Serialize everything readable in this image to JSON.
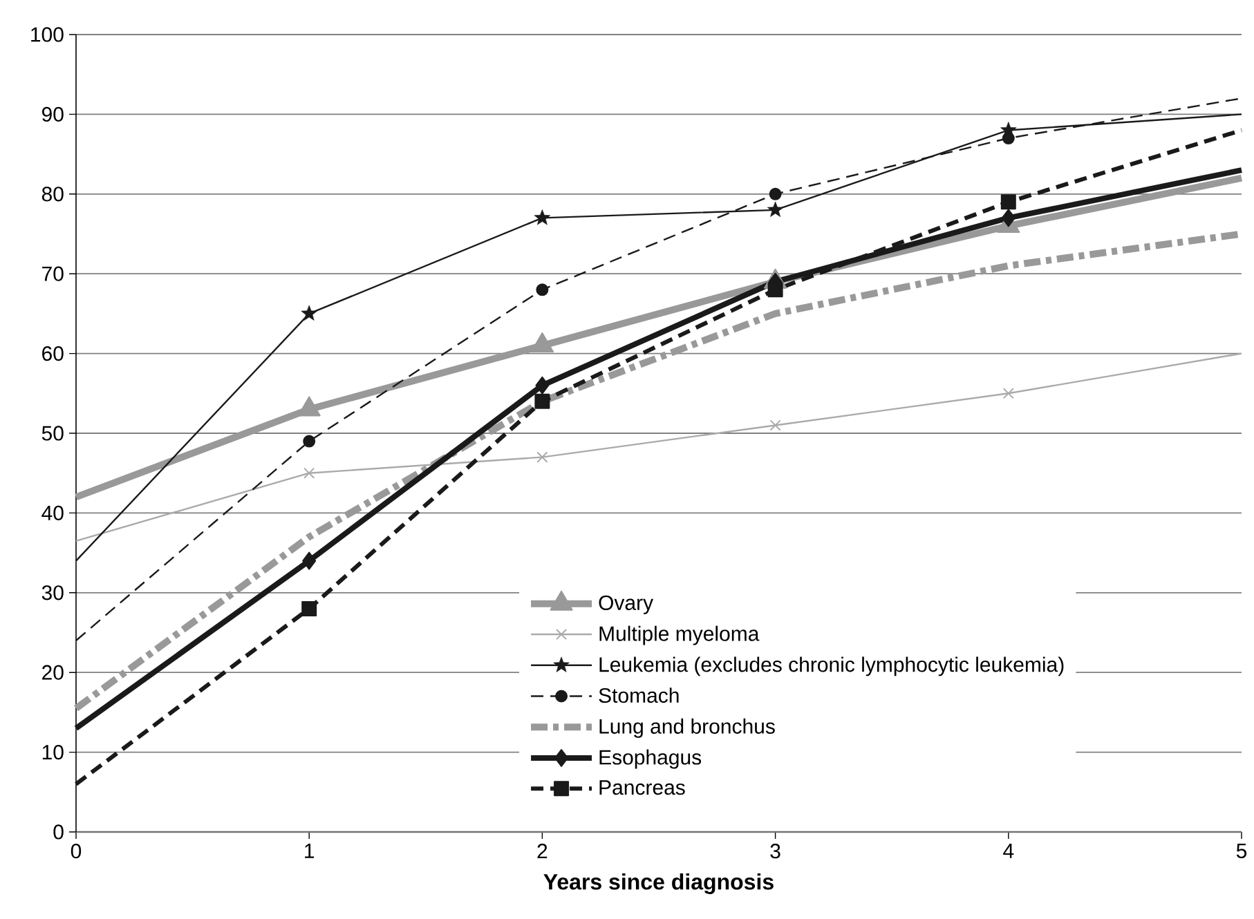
{
  "chart_data": {
    "type": "line",
    "xlabel": "Years since diagnosis",
    "x": [
      0,
      1,
      2,
      3,
      4,
      5
    ],
    "xlim": [
      0,
      5
    ],
    "xticks": [
      0,
      1,
      2,
      3,
      4,
      5
    ],
    "ylim": [
      0,
      100
    ],
    "yticks": [
      0,
      10,
      20,
      30,
      40,
      50,
      60,
      70,
      80,
      90,
      100
    ],
    "grid": "y",
    "legend": "bottom right",
    "series": [
      {
        "name": "Ovary",
        "color": "#999999",
        "marker": "triangle",
        "line_style": "solid",
        "values": [
          42,
          53,
          61,
          69,
          76,
          82
        ]
      },
      {
        "name": "Multiple myeloma",
        "color": "#aaaaaa",
        "marker": "cross",
        "line_style": "solid",
        "values": [
          36.5,
          45,
          47,
          51,
          55,
          60
        ]
      },
      {
        "name": "Leukemia (excludes chronic lymphocytic leukemia)",
        "color": "#1a1a1a",
        "marker": "star",
        "line_style": "solid",
        "values": [
          34,
          65,
          77,
          78,
          88,
          90
        ]
      },
      {
        "name": "Stomach",
        "color": "#1a1a1a",
        "marker": "circle",
        "line_style": "dashed",
        "values": [
          24,
          49,
          68,
          80,
          87,
          92
        ]
      },
      {
        "name": "Lung and bronchus",
        "color": "#999999",
        "marker": "none",
        "line_style": "dashdot",
        "values": [
          15.5,
          37,
          54,
          65,
          71,
          75
        ]
      },
      {
        "name": "Esophagus",
        "color": "#1a1a1a",
        "marker": "diamond",
        "line_style": "solid",
        "values": [
          13,
          34,
          56,
          69,
          77,
          83
        ]
      },
      {
        "name": "Pancreas",
        "color": "#1a1a1a",
        "marker": "square",
        "line_style": "dashed",
        "values": [
          6,
          28,
          54,
          68,
          79,
          88
        ]
      }
    ]
  }
}
